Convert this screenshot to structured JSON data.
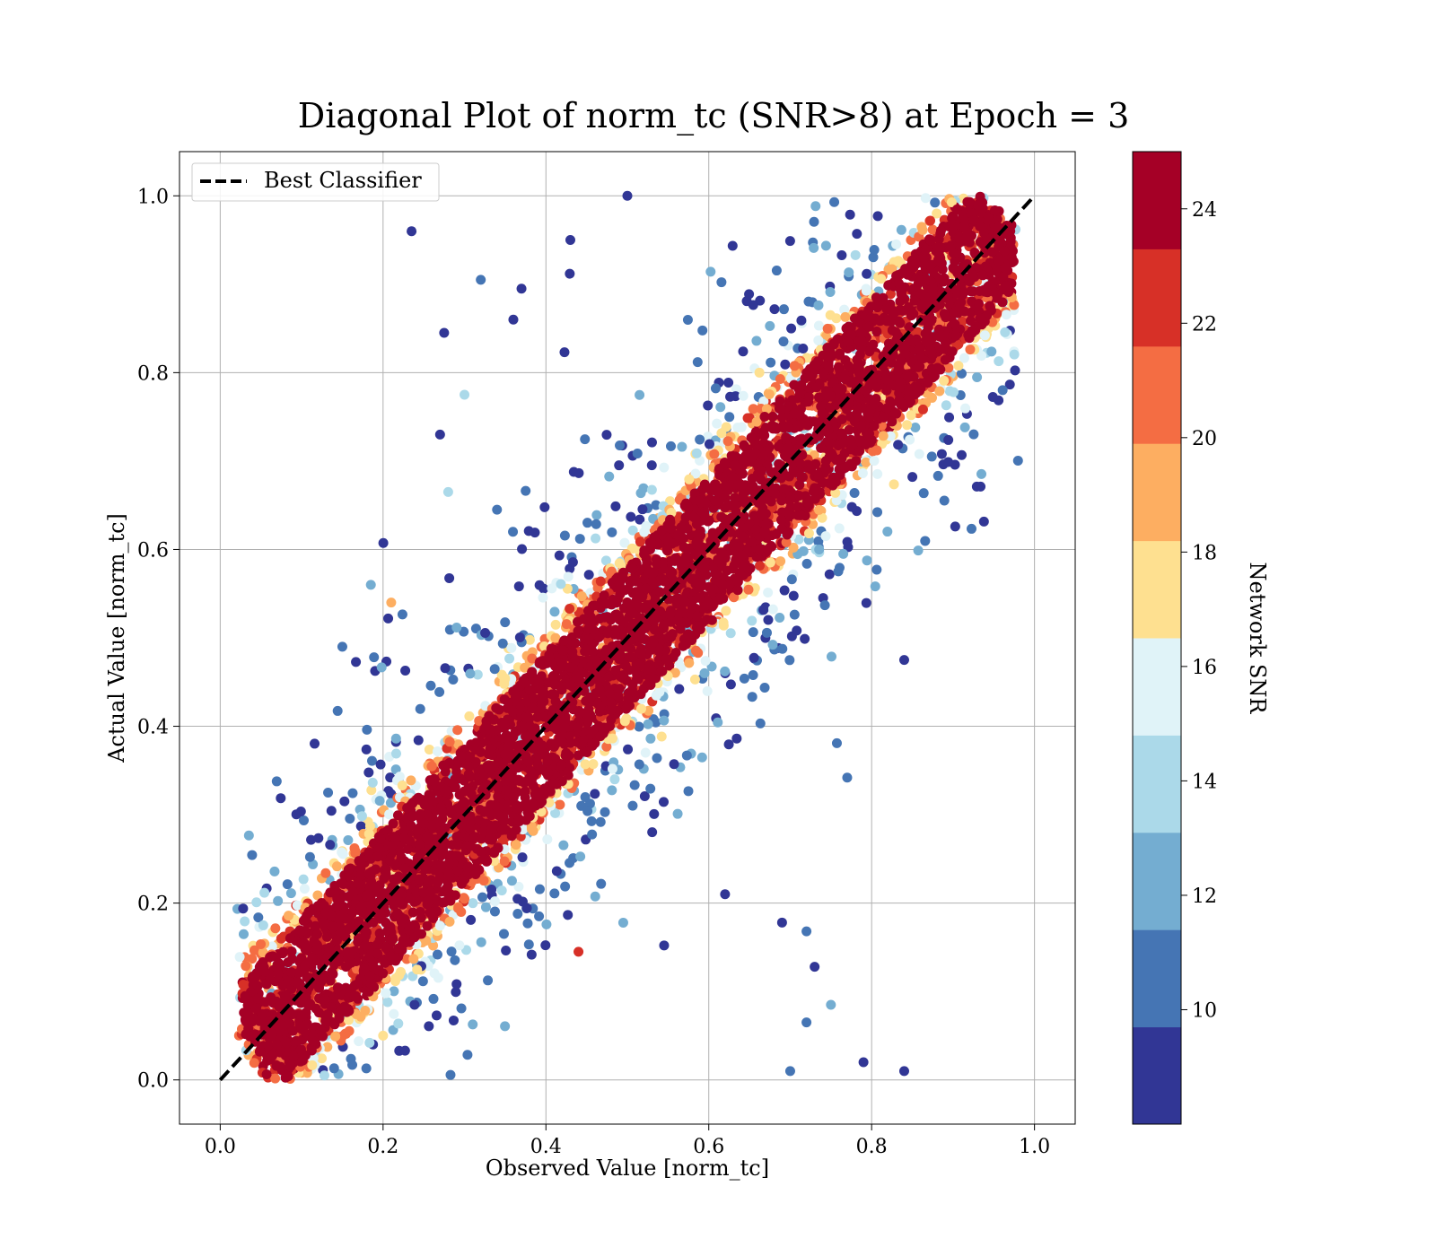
{
  "chart_data": {
    "type": "scatter",
    "title": "Diagonal Plot of norm_tc (SNR>8) at Epoch = 3",
    "xlabel": "Observed Value [norm_tc]",
    "ylabel": "Actual Value [norm_tc]",
    "xlim": [
      -0.05,
      1.05
    ],
    "ylim": [
      -0.05,
      1.05
    ],
    "x_ticks": [
      "0.0",
      "0.2",
      "0.4",
      "0.6",
      "0.8",
      "1.0"
    ],
    "y_ticks": [
      "0.0",
      "0.2",
      "0.4",
      "0.6",
      "0.8",
      "1.0"
    ],
    "grid": true,
    "legend": {
      "placement": "top-left",
      "entries": [
        {
          "label": "Best Classifier",
          "style": "black dashed line"
        }
      ]
    },
    "reference_line": {
      "name": "Best Classifier",
      "x": [
        0.0,
        1.0
      ],
      "y": [
        0.0,
        1.0
      ],
      "color": "#000000",
      "dash": "dashed"
    },
    "colorbar": {
      "label": "Network SNR",
      "range": [
        8,
        25
      ],
      "ticks": [
        "10",
        "12",
        "14",
        "16",
        "18",
        "20",
        "22",
        "24"
      ],
      "tick_values": [
        10,
        12,
        14,
        16,
        18,
        20,
        22,
        24
      ],
      "colors": [
        "#313695",
        "#4575b4",
        "#74add1",
        "#abd9e9",
        "#e0f3f8",
        "#fee090",
        "#fdae61",
        "#f46d43",
        "#d73027",
        "#a50026"
      ]
    },
    "points": {
      "note_free_outliers": [
        {
          "x": 0.235,
          "y": 0.96,
          "snr": 9
        },
        {
          "x": 0.275,
          "y": 0.845,
          "snr": 9
        },
        {
          "x": 0.36,
          "y": 0.86,
          "snr": 9
        },
        {
          "x": 0.37,
          "y": 0.895,
          "snr": 9
        },
        {
          "x": 0.32,
          "y": 0.905,
          "snr": 10
        },
        {
          "x": 0.3,
          "y": 0.775,
          "snr": 14
        },
        {
          "x": 0.27,
          "y": 0.73,
          "snr": 9
        },
        {
          "x": 0.28,
          "y": 0.665,
          "snr": 14
        },
        {
          "x": 0.185,
          "y": 0.56,
          "snr": 12
        },
        {
          "x": 0.21,
          "y": 0.54,
          "snr": 19
        },
        {
          "x": 0.15,
          "y": 0.49,
          "snr": 10
        },
        {
          "x": 0.84,
          "y": 0.475,
          "snr": 9
        },
        {
          "x": 0.77,
          "y": 0.342,
          "snr": 10
        },
        {
          "x": 0.84,
          "y": 0.01,
          "snr": 9
        },
        {
          "x": 0.79,
          "y": 0.02,
          "snr": 9
        },
        {
          "x": 0.7,
          "y": 0.01,
          "snr": 10
        },
        {
          "x": 0.75,
          "y": 0.085,
          "snr": 12
        },
        {
          "x": 0.72,
          "y": 0.065,
          "snr": 10
        },
        {
          "x": 0.73,
          "y": 0.128,
          "snr": 9
        },
        {
          "x": 0.72,
          "y": 0.168,
          "snr": 10
        },
        {
          "x": 0.69,
          "y": 0.178,
          "snr": 9
        },
        {
          "x": 0.62,
          "y": 0.21,
          "snr": 9
        },
        {
          "x": 0.5,
          "y": 1.0,
          "snr": 9
        },
        {
          "x": 0.43,
          "y": 0.95,
          "snr": 9
        },
        {
          "x": 0.44,
          "y": 0.145,
          "snr": 23
        }
      ]
    }
  }
}
